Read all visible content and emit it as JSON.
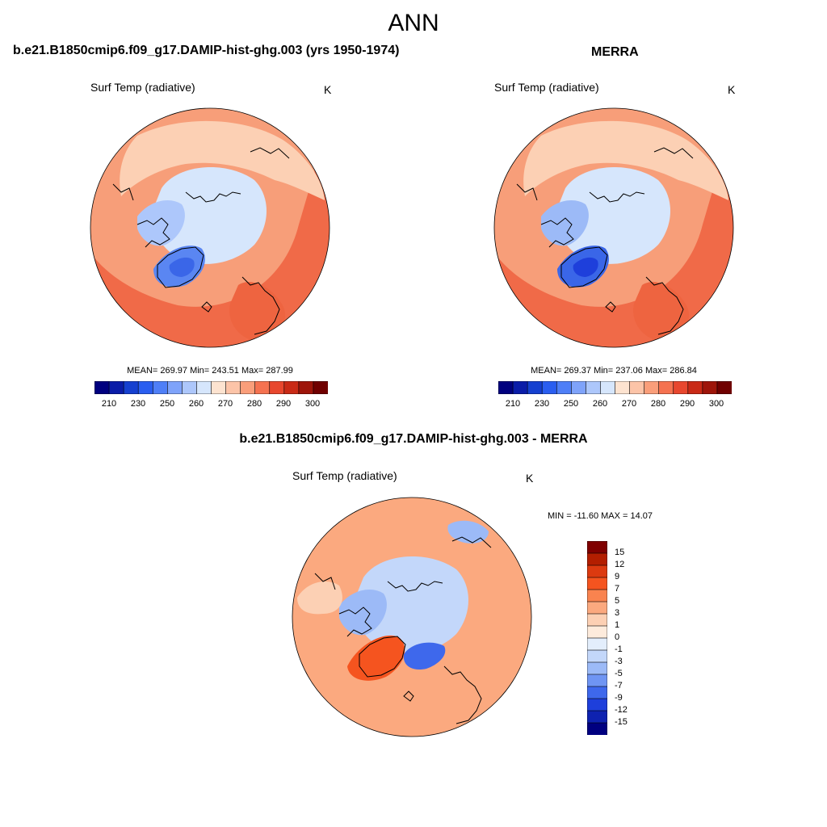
{
  "page": {
    "title": "ANN"
  },
  "panels": {
    "model": {
      "title": "b.e21.B1850cmip6.f09_g17.DAMIP-hist-ghg.003 (yrs 1950-1974)",
      "variable": "Surf Temp (radiative)",
      "units": "K",
      "stats": "MEAN= 269.97  Min= 243.51  Max= 287.99"
    },
    "obs": {
      "title": "MERRA",
      "variable": "Surf Temp (radiative)",
      "units": "K",
      "stats": "MEAN= 269.37  Min= 237.06  Max= 286.84"
    },
    "diff": {
      "title": "b.e21.B1850cmip6.f09_g17.DAMIP-hist-ghg.003 - MERRA",
      "variable": "Surf Temp (radiative)",
      "units": "K",
      "stats": "MIN = -11.60 MAX =  14.07"
    }
  },
  "colorbars": {
    "abs": {
      "labels": [
        "210",
        "230",
        "250",
        "260",
        "270",
        "280",
        "290",
        "300"
      ],
      "colors": [
        "#00007f",
        "#0a1ca8",
        "#1540d0",
        "#2a5ef0",
        "#4f7ff7",
        "#7fa3fa",
        "#adc7fb",
        "#d6e6fc",
        "#fde3d0",
        "#fcc4a8",
        "#fa9e7a",
        "#f57250",
        "#e8472e",
        "#c92a16",
        "#9e150a",
        "#700000"
      ]
    },
    "diff": {
      "labels": [
        "15",
        "12",
        "9",
        "7",
        "5",
        "3",
        "1",
        "0",
        "-1",
        "-3",
        "-5",
        "-7",
        "-9",
        "-12",
        "-15"
      ],
      "colors": [
        "#800000",
        "#b31e00",
        "#dc3a10",
        "#f5541f",
        "#f9834f",
        "#fba97f",
        "#fcd0b4",
        "#fdebdc",
        "#e3eefc",
        "#c3d7fa",
        "#9cbaf7",
        "#6f95f3",
        "#3e68ec",
        "#1e3fdb",
        "#0e22b0",
        "#000080"
      ]
    }
  },
  "map_fields": {
    "model": {
      "background": "#f79e79",
      "regions": [
        {
          "name": "southern-warm",
          "color": "#f06a48"
        },
        {
          "name": "europe-warm",
          "color": "#ee6440"
        },
        {
          "name": "asia-cool",
          "color": "#fcd0b4"
        },
        {
          "name": "arctic-ocean",
          "color": "#d6e6fc"
        },
        {
          "name": "canadian-arch",
          "color": "#adc7fb"
        },
        {
          "name": "greenland",
          "color": "#5a86f2"
        },
        {
          "name": "greenland-core",
          "color": "#3a66e8"
        }
      ]
    },
    "obs": {
      "background": "#f79e79",
      "regions": [
        {
          "name": "southern-warm",
          "color": "#f06a48"
        },
        {
          "name": "europe-warm",
          "color": "#ee6440"
        },
        {
          "name": "asia-cool",
          "color": "#fcd0b4"
        },
        {
          "name": "arctic-ocean",
          "color": "#d6e6fc"
        },
        {
          "name": "canadian-arch",
          "color": "#9cbaf7"
        },
        {
          "name": "greenland",
          "color": "#3a66e8"
        },
        {
          "name": "greenland-core",
          "color": "#1e3fdb"
        }
      ]
    },
    "diff": {
      "background": "#fba97f",
      "regions": [
        {
          "name": "arctic-ocean",
          "color": "#c3d7fa"
        },
        {
          "name": "canadian-arch",
          "color": "#9cbaf7"
        },
        {
          "name": "greenland-warm",
          "color": "#f5541f"
        },
        {
          "name": "svalbard-cold",
          "color": "#3e68ec"
        },
        {
          "name": "pacific-cold",
          "color": "#9cbaf7"
        },
        {
          "name": "light-band",
          "color": "#fcd0b4"
        }
      ]
    }
  }
}
